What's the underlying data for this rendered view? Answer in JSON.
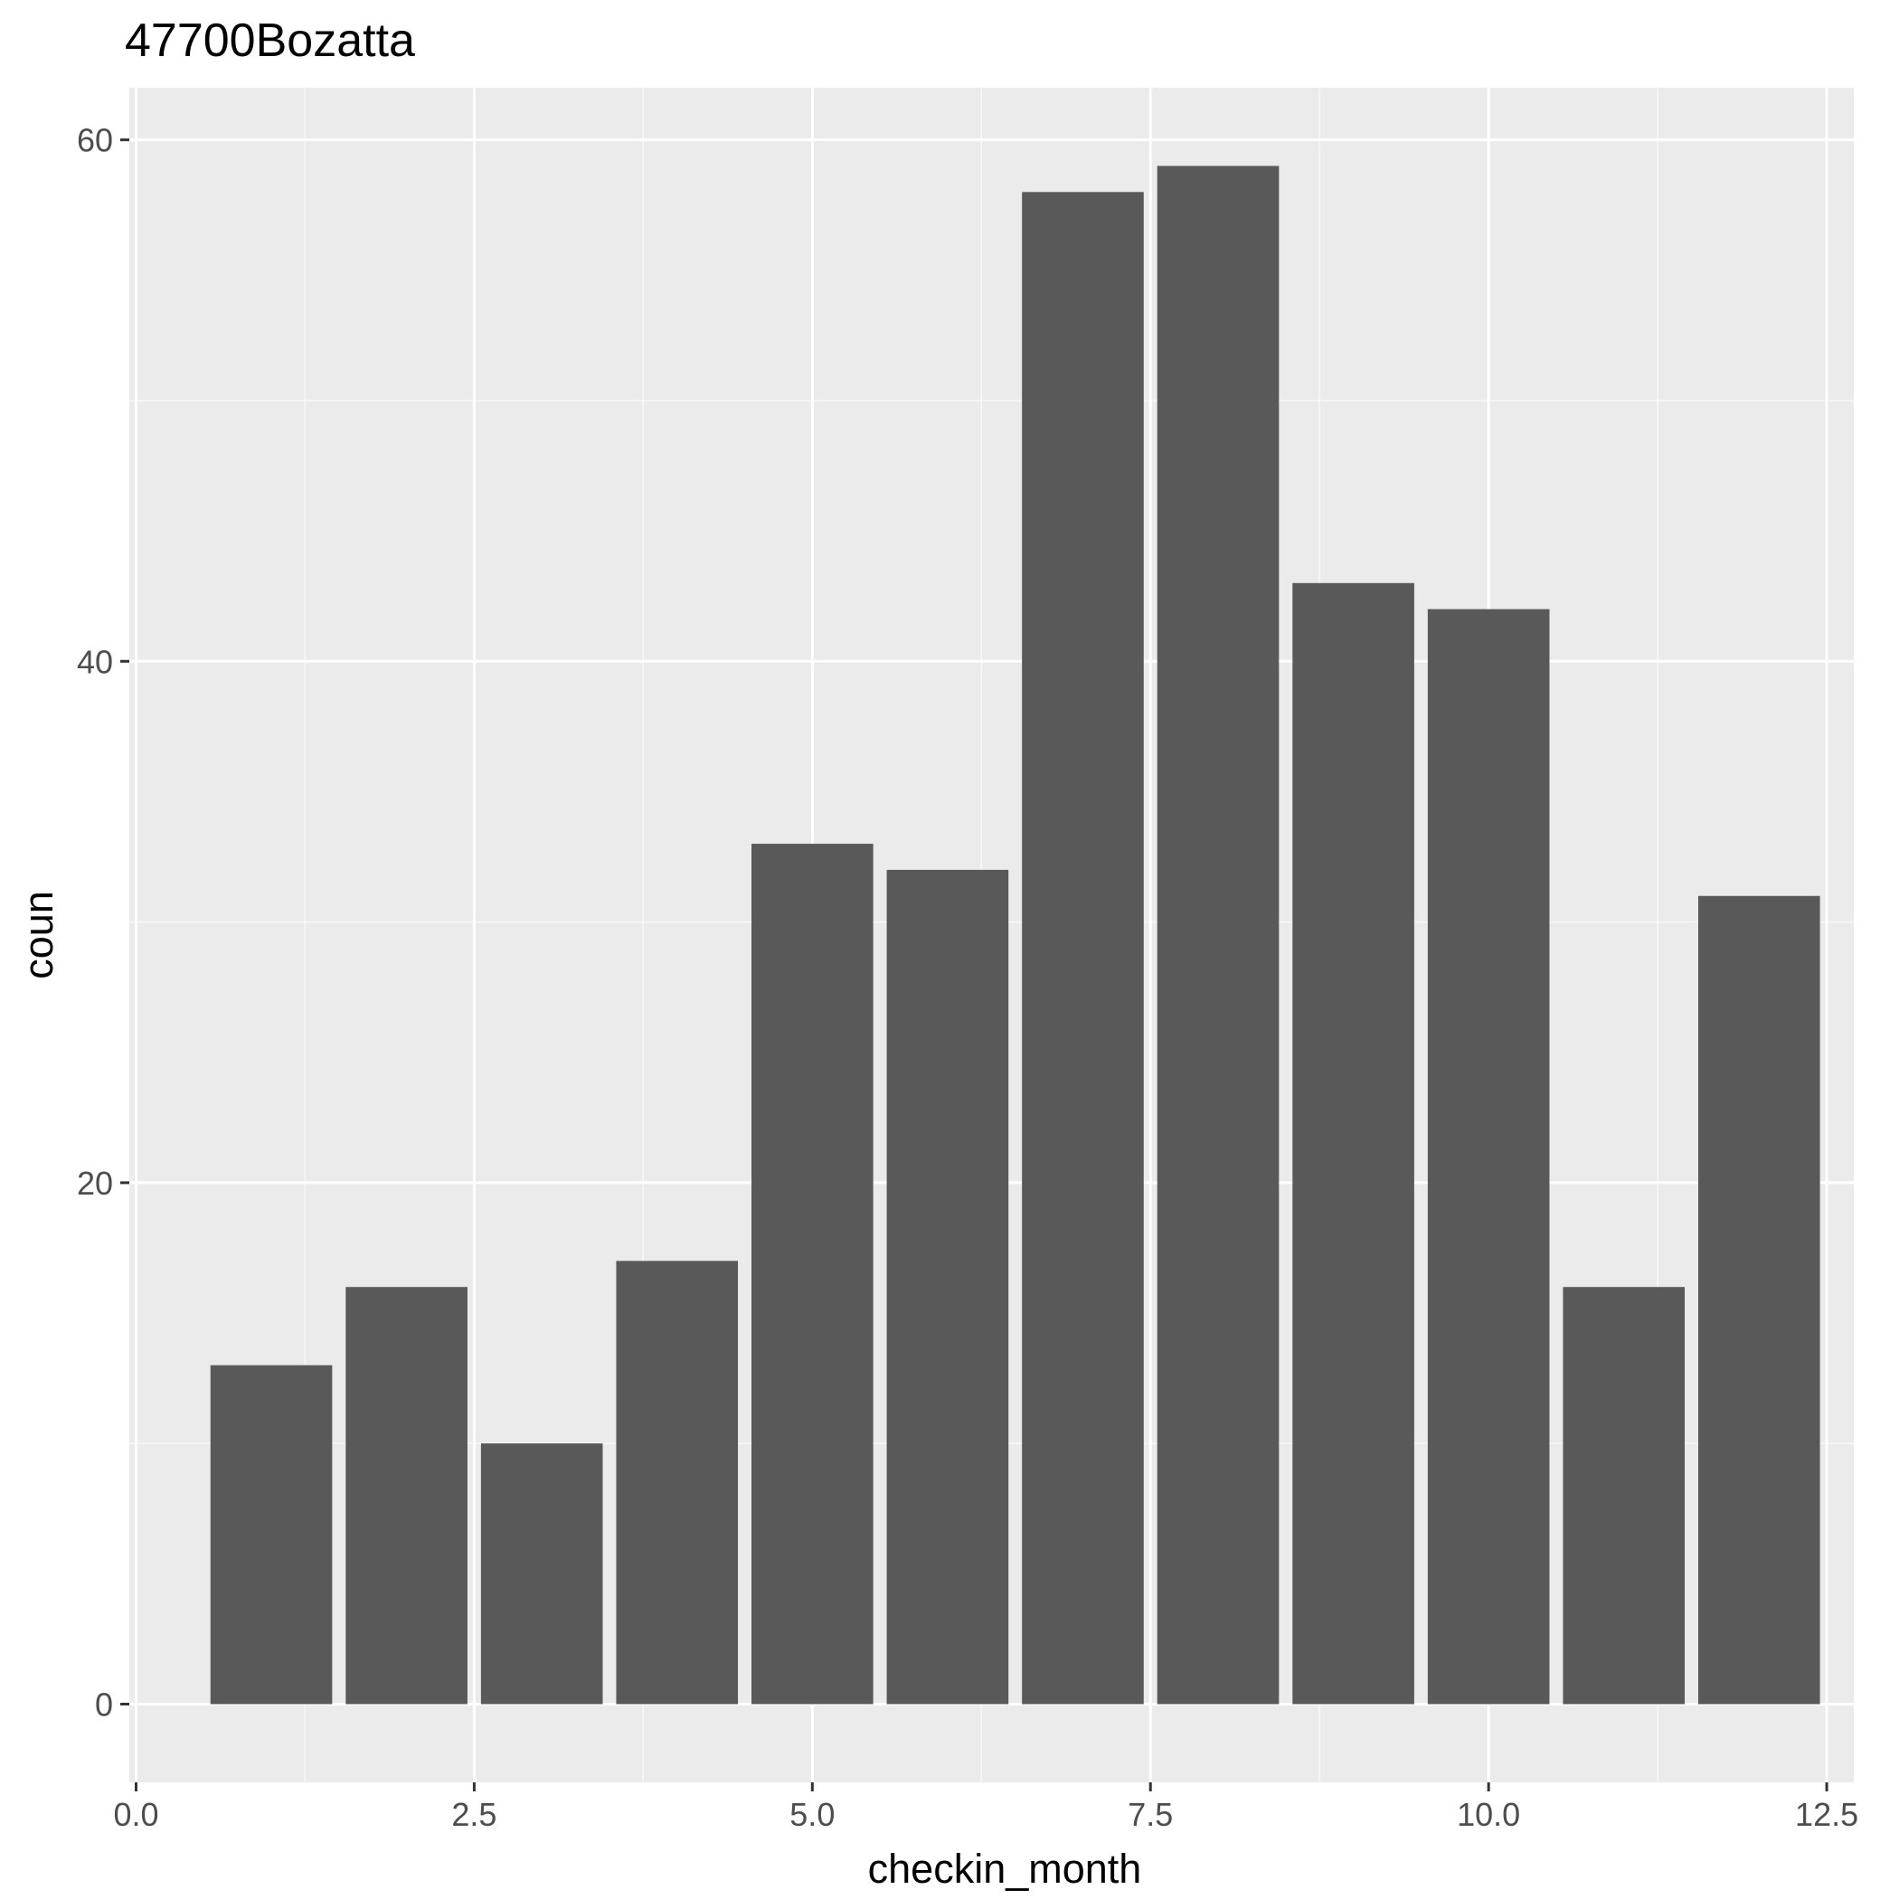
{
  "chart_data": {
    "type": "bar",
    "title": "47700Bozatta",
    "xlabel": "checkin_month",
    "ylabel": "coun",
    "x": [
      1,
      2,
      3,
      4,
      5,
      6,
      7,
      8,
      9,
      10,
      11,
      12
    ],
    "values": [
      13,
      16,
      10,
      17,
      33,
      32,
      58,
      59,
      43,
      42,
      16,
      31
    ],
    "bar_width": 0.9,
    "xlim": [
      -0.05,
      12.7
    ],
    "ylim": [
      -3,
      62
    ],
    "x_ticks": [
      {
        "value": 0,
        "label": "0.0"
      },
      {
        "value": 2.5,
        "label": "2.5"
      },
      {
        "value": 5,
        "label": "5.0"
      },
      {
        "value": 7.5,
        "label": "7.5"
      },
      {
        "value": 10,
        "label": "10.0"
      },
      {
        "value": 12.5,
        "label": "12.5"
      }
    ],
    "x_minor_ticks": [
      1.25,
      3.75,
      6.25,
      8.75,
      11.25
    ],
    "y_ticks": [
      {
        "value": 0,
        "label": "0"
      },
      {
        "value": 20,
        "label": "20"
      },
      {
        "value": 40,
        "label": "40"
      },
      {
        "value": 60,
        "label": "60"
      }
    ],
    "y_minor_ticks": [
      10,
      30,
      50
    ],
    "grid": true,
    "colors": {
      "panel_background": "#ebebeb",
      "grid_major": "#ffffff",
      "grid_minor": "#f7f7f7",
      "bar_fill": "#595959",
      "tick_color": "#333333",
      "tick_label_color": "#4d4d4d",
      "text_color": "#000000"
    }
  }
}
